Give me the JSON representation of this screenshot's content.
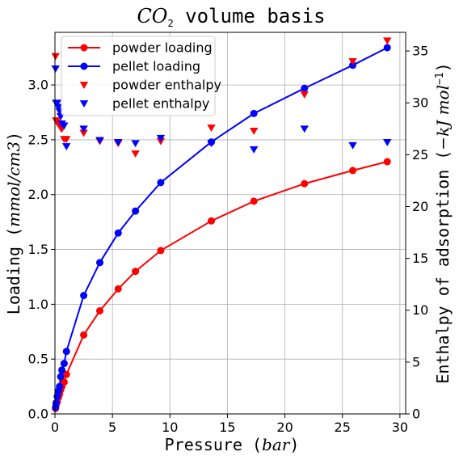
{
  "chart_data": {
    "type": "line",
    "title": {
      "main": "CO",
      "sub": "2",
      "rest": " volume basis"
    },
    "xlabel": {
      "pre": "Pressure (",
      "var": "bar",
      "post": ")"
    },
    "ylabel": {
      "pre": "Loading (",
      "var": "mmol/cm3",
      "post": ")"
    },
    "y2label": {
      "pre": "Enthalpy of adsorption (",
      "var": "−kJ mol",
      "sup": "−1",
      "post": ")"
    },
    "xlim": [
      0,
      30.5
    ],
    "ylim": [
      0,
      3.48
    ],
    "y2lim": [
      0,
      36.8
    ],
    "xticks": [
      "0",
      "5",
      "10",
      "15",
      "20",
      "25",
      "30"
    ],
    "yticks": [
      "0.0",
      "0.5",
      "1.0",
      "1.5",
      "2.0",
      "2.5",
      "3.0"
    ],
    "y2ticks": [
      "0",
      "5",
      "10",
      "15",
      "20",
      "25",
      "30",
      "35"
    ],
    "grid": true,
    "legend_position": "top-left",
    "colors": {
      "red": "#ff0000",
      "blue": "#0000ff"
    },
    "series": [
      {
        "name": "powder loading",
        "kind": "line-marker",
        "axis": "left",
        "color": "#ff0000",
        "x": [
          0.05,
          0.1,
          0.2,
          0.3,
          0.4,
          0.5,
          0.6,
          0.8,
          1.0,
          2.5,
          3.9,
          5.5,
          7.0,
          9.2,
          13.6,
          17.3,
          21.7,
          25.9,
          28.9
        ],
        "y": [
          0.05,
          0.08,
          0.11,
          0.15,
          0.18,
          0.22,
          0.25,
          0.29,
          0.36,
          0.72,
          0.94,
          1.14,
          1.3,
          1.49,
          1.76,
          1.94,
          2.1,
          2.22,
          2.3
        ]
      },
      {
        "name": "pellet loading",
        "kind": "line-marker",
        "axis": "left",
        "color": "#0000ff",
        "x": [
          0.05,
          0.1,
          0.2,
          0.3,
          0.4,
          0.5,
          0.6,
          0.8,
          1.0,
          2.5,
          3.9,
          5.5,
          7.0,
          9.2,
          13.6,
          17.3,
          21.7,
          25.9,
          28.9
        ],
        "y": [
          0.06,
          0.1,
          0.16,
          0.21,
          0.25,
          0.34,
          0.4,
          0.46,
          0.57,
          1.08,
          1.38,
          1.65,
          1.85,
          2.11,
          2.48,
          2.74,
          2.97,
          3.18,
          3.34
        ]
      },
      {
        "name": "powder enthalpy",
        "kind": "marker-down",
        "axis": "right",
        "color": "#ff0000",
        "x": [
          0.05,
          0.1,
          0.2,
          0.3,
          0.4,
          0.5,
          0.6,
          0.8,
          1.0,
          2.5,
          3.9,
          5.5,
          7.0,
          9.2,
          13.6,
          17.3,
          21.7,
          25.9,
          28.9
        ],
        "y": [
          34.5,
          28.3,
          28.1,
          28.0,
          27.9,
          27.6,
          27.5,
          26.5,
          26.5,
          27.1,
          26.3,
          26.1,
          25.1,
          26.3,
          27.6,
          27.3,
          30.8,
          34.0,
          36.0
        ]
      },
      {
        "name": "pellet enthalpy",
        "kind": "marker-down",
        "axis": "right",
        "color": "#0000ff",
        "x": [
          0.05,
          0.1,
          0.2,
          0.3,
          0.4,
          0.5,
          0.6,
          0.8,
          1.0,
          2.5,
          3.9,
          5.5,
          7.0,
          9.2,
          13.6,
          17.3,
          21.7,
          25.9,
          28.9
        ],
        "y": [
          33.3,
          30.0,
          30.0,
          29.6,
          29.2,
          28.7,
          28.0,
          27.8,
          25.8,
          27.5,
          26.4,
          26.2,
          26.1,
          26.6,
          26.1,
          25.5,
          27.5,
          25.9,
          26.2
        ]
      }
    ]
  }
}
